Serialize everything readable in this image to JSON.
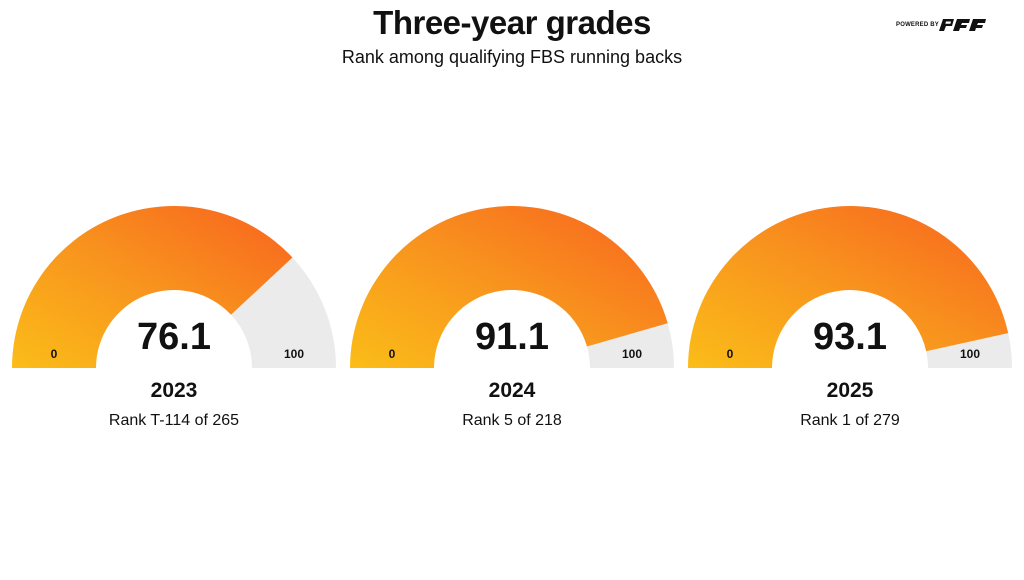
{
  "header": {
    "title": "Three-year grades",
    "subtitle": "Rank among qualifying FBS running backs",
    "brand_prefix": "POWERED BY",
    "brand_logo": "PFF"
  },
  "colors": {
    "gauge_start": "#fbbd18",
    "gauge_mid": "#f8931e",
    "gauge_end": "#f9621f",
    "track": "#ebebeb",
    "text": "#111111"
  },
  "chart_data": {
    "type": "gauge",
    "min": 0,
    "max": 100,
    "min_label": "0",
    "max_label": "100",
    "gauges": [
      {
        "value": 76.1,
        "value_label": "76.1",
        "year": "2023",
        "rank": "Rank T-114 of 265"
      },
      {
        "value": 91.1,
        "value_label": "91.1",
        "year": "2024",
        "rank": "Rank 5 of 218"
      },
      {
        "value": 93.1,
        "value_label": "93.1",
        "year": "2025",
        "rank": "Rank 1 of 279"
      }
    ]
  }
}
